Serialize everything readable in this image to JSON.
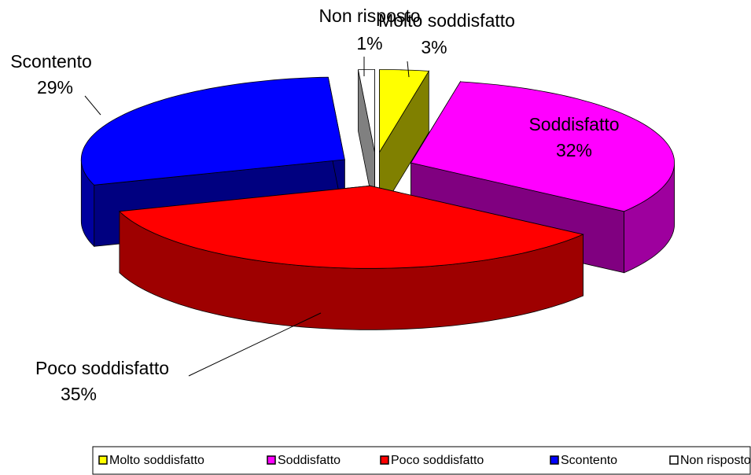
{
  "chart_data": {
    "type": "pie",
    "categories": [
      "Molto soddisfatto",
      "Soddisfatto",
      "Poco soddisfatto",
      "Scontento",
      "Non risposto"
    ],
    "values": [
      3,
      32,
      35,
      29,
      1
    ],
    "value_labels": [
      "3%",
      "32%",
      "35%",
      "29%",
      "1%"
    ],
    "colors": [
      "#ffff00",
      "#ff00ff",
      "#ff0000",
      "#0000ff",
      "#ffffff"
    ],
    "legend": "bottom"
  }
}
